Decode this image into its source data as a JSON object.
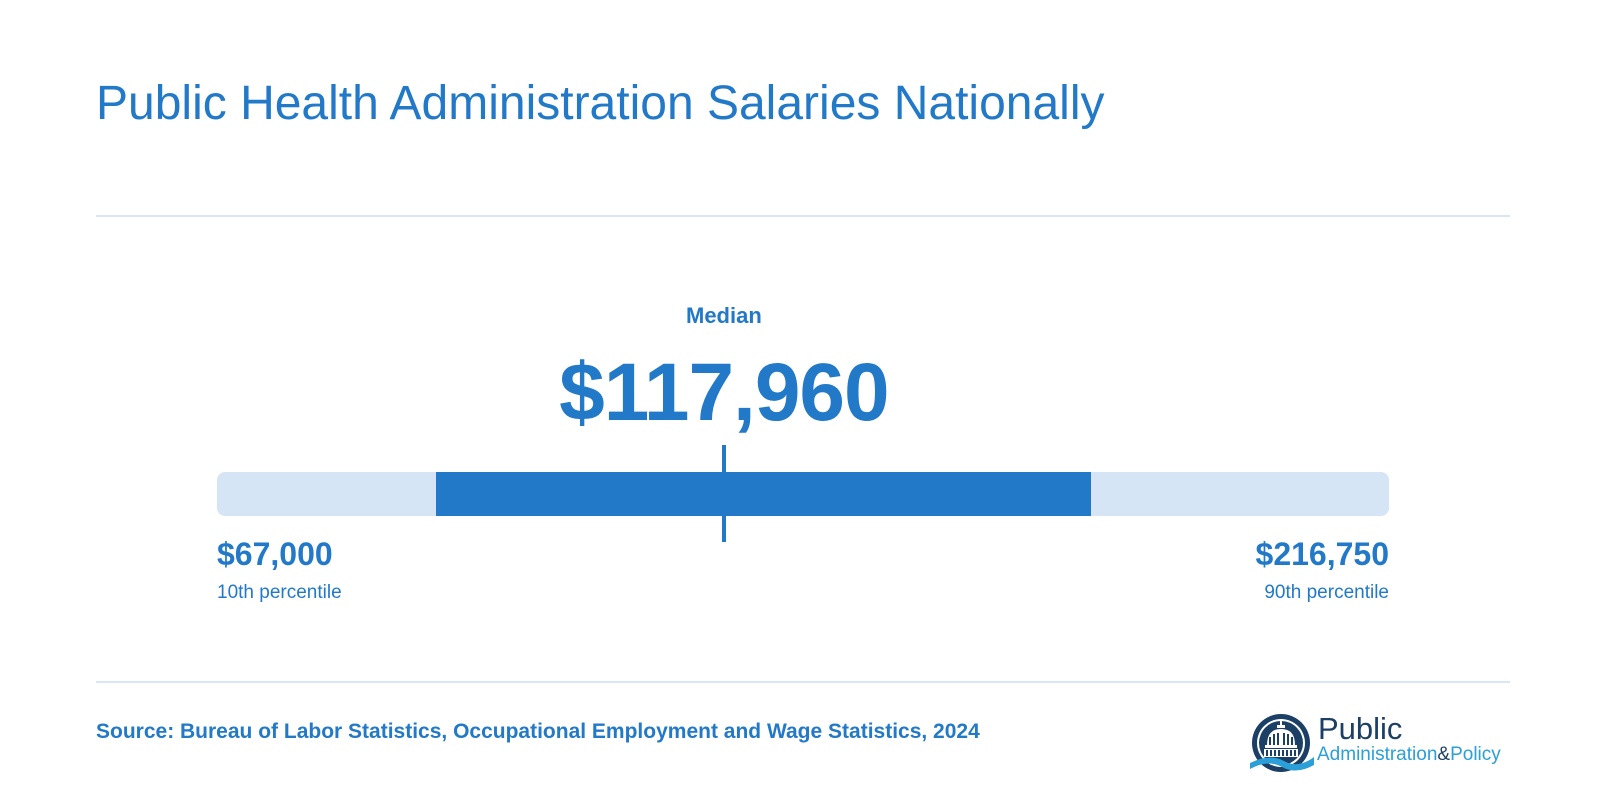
{
  "title": "Public Health Administration Salaries Nationally",
  "chart_data": {
    "type": "range",
    "axis_min": 15800,
    "axis_max": 252000,
    "median": {
      "label": "Median",
      "value": 117960,
      "display": "$117,960"
    },
    "range_low": 60000,
    "range_high": 192000,
    "p10": {
      "value": 67000,
      "display": "$67,000",
      "caption": "10th percentile"
    },
    "p90": {
      "value": 216750,
      "display": "$216,750",
      "caption": "90th percentile"
    }
  },
  "source": "Source: Bureau of Labor Statistics, Occupational Employment and Wage Statistics, 2024",
  "logo": {
    "line1": "Public",
    "line2a": "Administration",
    "line2amp": "&",
    "line2b": "Policy",
    "icon": "capitol-dome-icon"
  },
  "colors": {
    "primary": "#2179c8",
    "track": "#d6e5f5",
    "divider": "#d9e7f4",
    "logo_navy": "#1c3f66",
    "logo_cyan": "#2b9fd8"
  }
}
